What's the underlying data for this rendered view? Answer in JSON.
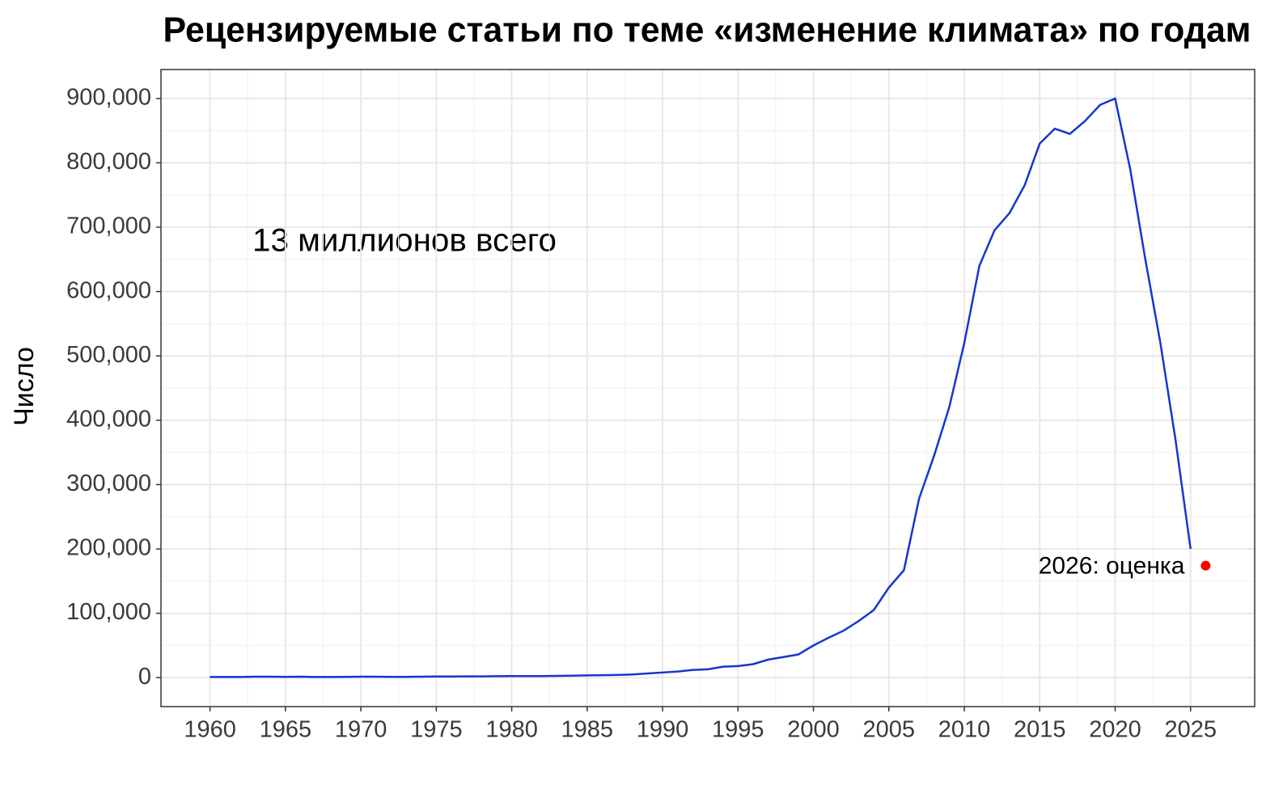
{
  "chart_data": {
    "type": "line",
    "title": "Рецензируемые статьи по теме «изменение климата» по годам",
    "y_label": "Число",
    "annotation": "13 миллионов всего",
    "color": "#1536d1",
    "grid": true,
    "x": [
      1960,
      1961,
      1962,
      1963,
      1964,
      1965,
      1966,
      1967,
      1968,
      1969,
      1970,
      1971,
      1972,
      1973,
      1974,
      1975,
      1976,
      1977,
      1978,
      1979,
      1980,
      1981,
      1982,
      1983,
      1984,
      1985,
      1986,
      1987,
      1988,
      1989,
      1990,
      1991,
      1992,
      1993,
      1994,
      1995,
      1996,
      1997,
      1998,
      1999,
      2000,
      2001,
      2002,
      2003,
      2004,
      2005,
      2006,
      2007,
      2008,
      2009,
      2010,
      2011,
      2012,
      2013,
      2014,
      2015,
      2016,
      2017,
      2018,
      2019,
      2020,
      2021,
      2022,
      2023,
      2024,
      2025
    ],
    "values": [
      1000,
      1000,
      1000,
      1500,
      1500,
      1200,
      1500,
      1000,
      1000,
      1200,
      1500,
      1500,
      1200,
      1200,
      1500,
      1800,
      1800,
      2000,
      2000,
      2200,
      2500,
      2500,
      2500,
      2800,
      3000,
      3500,
      3800,
      4200,
      5000,
      6500,
      8000,
      9500,
      12000,
      13000,
      17000,
      18000,
      21000,
      28000,
      32000,
      36000,
      50000,
      62000,
      73000,
      88000,
      105000,
      140000,
      167000,
      278000,
      345000,
      420000,
      520000,
      640000,
      695000,
      722000,
      765000,
      830000,
      853000,
      845000,
      865000,
      890000,
      900000,
      790000,
      650000,
      520000,
      370000,
      200000
    ],
    "estimate": {
      "x": 2026,
      "value": 174000,
      "label": "2026: оценка",
      "color": "#ff0000"
    },
    "xlim": [
      1956.75,
      2029.25
    ],
    "ylim": [
      -45000,
      945000
    ],
    "xticks": [
      1960,
      1965,
      1970,
      1975,
      1980,
      1985,
      1990,
      1995,
      2000,
      2005,
      2010,
      2015,
      2020,
      2025
    ],
    "yticks": [
      0,
      {
        "value": 100000,
        "label": "100,000"
      },
      {
        "value": 200000,
        "label": "200,000"
      },
      {
        "value": 300000,
        "label": "300,000"
      },
      {
        "value": 400000,
        "label": "400,000"
      },
      {
        "value": 500000,
        "label": "500,000"
      },
      {
        "value": 600000,
        "label": "600,000"
      },
      {
        "value": 700000,
        "label": "700,000"
      },
      {
        "value": 800000,
        "label": "800,000"
      },
      {
        "value": 900000,
        "label": "900,000"
      }
    ]
  }
}
